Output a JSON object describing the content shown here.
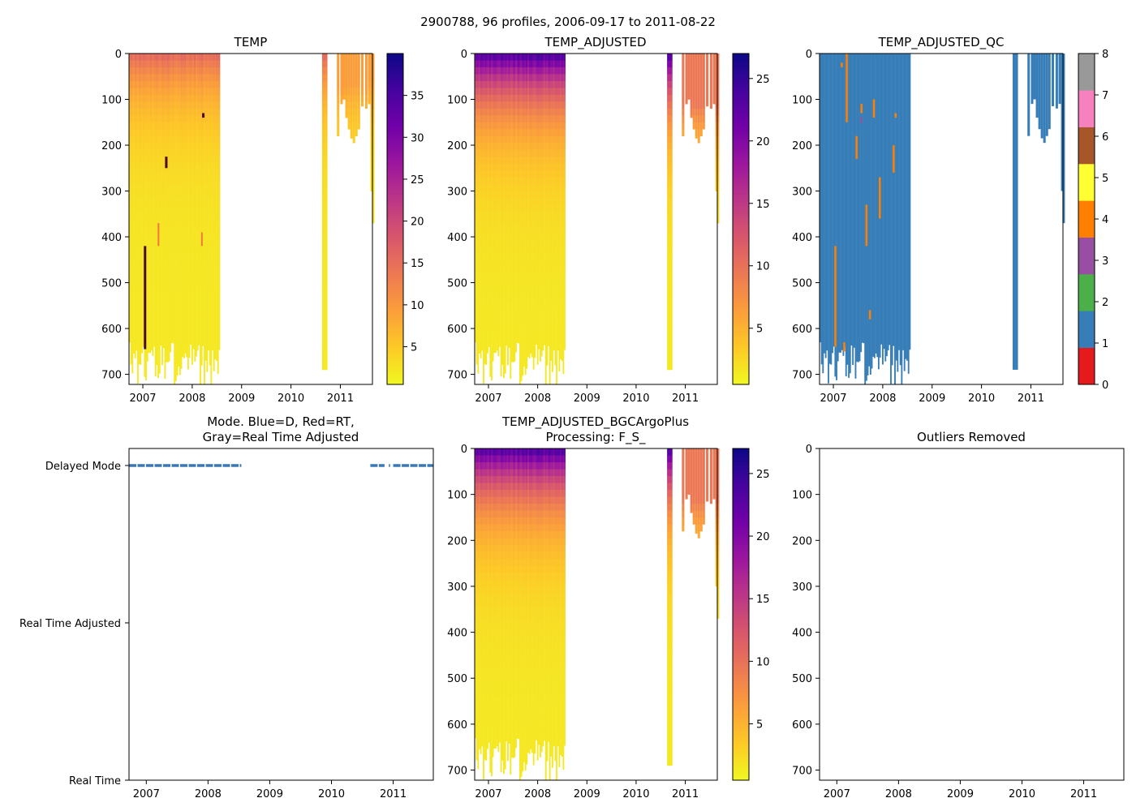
{
  "suptitle": "2900788, 96 profiles, 2006-09-17 to 2011-08-22",
  "colors": {
    "plasma": [
      "#f0f921",
      "#fdca26",
      "#fb9f3a",
      "#ed7953",
      "#d8576b",
      "#bd3786",
      "#9c179e",
      "#7201a8",
      "#46039f",
      "#0d0887"
    ],
    "qc": [
      "#e41a1c",
      "#377eb8",
      "#4daf4a",
      "#984ea3",
      "#ff7f00",
      "#ffff33",
      "#a65628",
      "#f781bf",
      "#999999"
    ],
    "mode_delayed": "#3a78b5"
  },
  "chart_data": [
    {
      "id": "temp",
      "type": "heatmap",
      "title": "TEMP",
      "xticks": [
        "2007",
        "2008",
        "2009",
        "2010",
        "2011"
      ],
      "xlim": [
        2006.72,
        2011.65
      ],
      "yticks": [
        "0",
        "100",
        "200",
        "300",
        "400",
        "500",
        "600",
        "700"
      ],
      "ylim": [
        0,
        722
      ],
      "colorbar": {
        "ticks": [
          "5",
          "10",
          "15",
          "20",
          "25",
          "30",
          "35"
        ],
        "tick_values": [
          5,
          10,
          15,
          20,
          25,
          30,
          35
        ],
        "range": [
          0.5,
          40
        ]
      },
      "surface_value": 16,
      "deep_value": 2,
      "variant": "raw"
    },
    {
      "id": "temp-adjusted",
      "type": "heatmap",
      "title": "TEMP_ADJUSTED",
      "xticks": [
        "2007",
        "2008",
        "2009",
        "2010",
        "2011"
      ],
      "xlim": [
        2006.72,
        2011.65
      ],
      "yticks": [
        "0",
        "100",
        "200",
        "300",
        "400",
        "500",
        "600",
        "700"
      ],
      "ylim": [
        0,
        722
      ],
      "colorbar": {
        "ticks": [
          "5",
          "10",
          "15",
          "20",
          "25"
        ],
        "tick_values": [
          5,
          10,
          15,
          20,
          25
        ],
        "range": [
          0.5,
          27
        ]
      },
      "surface_value": 24,
      "deep_value": 1.5,
      "variant": "adjusted"
    },
    {
      "id": "temp-adjusted-qc",
      "type": "heatmap",
      "title": "TEMP_ADJUSTED_QC",
      "xticks": [
        "2007",
        "2008",
        "2009",
        "2010",
        "2011"
      ],
      "xlim": [
        2006.72,
        2011.65
      ],
      "yticks": [
        "0",
        "100",
        "200",
        "300",
        "400",
        "500",
        "600",
        "700"
      ],
      "ylim": [
        0,
        722
      ],
      "colorbar": {
        "ticks": [
          "0",
          "1",
          "2",
          "3",
          "4",
          "5",
          "6",
          "7",
          "8"
        ],
        "tick_values": [
          0,
          1,
          2,
          3,
          4,
          5,
          6,
          7,
          8
        ],
        "range": [
          0,
          8
        ],
        "categorical": true
      },
      "variant": "qc"
    },
    {
      "id": "mode",
      "type": "scatter",
      "title": "Mode. Blue=D, Red=RT,",
      "title2": "Gray=Real Time Adjusted",
      "xticks": [
        "2007",
        "2008",
        "2009",
        "2010",
        "2011"
      ],
      "xlim": [
        2006.72,
        2011.65
      ],
      "yticks": [
        "Delayed Mode",
        "Real Time Adjusted",
        "Real Time"
      ],
      "series": [
        {
          "name": "D",
          "y": "Delayed Mode",
          "x_segments": [
            [
              2006.72,
              2008.54
            ],
            [
              2010.63,
              2010.86
            ],
            [
              2010.93,
              2010.95
            ],
            [
              2011.0,
              2011.65
            ]
          ]
        }
      ]
    },
    {
      "id": "temp-bgc",
      "type": "heatmap",
      "title": "TEMP_ADJUSTED_BGCArgoPlus",
      "title2": "Processing: F_S_",
      "xticks": [
        "2007",
        "2008",
        "2009",
        "2010",
        "2011"
      ],
      "xlim": [
        2006.72,
        2011.65
      ],
      "yticks": [
        "0",
        "100",
        "200",
        "300",
        "400",
        "500",
        "600",
        "700"
      ],
      "ylim": [
        0,
        722
      ],
      "colorbar": {
        "ticks": [
          "5",
          "10",
          "15",
          "20",
          "25"
        ],
        "tick_values": [
          5,
          10,
          15,
          20,
          25
        ],
        "range": [
          0.5,
          27
        ]
      },
      "surface_value": 24,
      "deep_value": 1.5,
      "variant": "adjusted"
    },
    {
      "id": "outliers",
      "type": "scatter",
      "title": "Outliers Removed",
      "xticks": [
        "2007",
        "2008",
        "2009",
        "2010",
        "2011"
      ],
      "xlim": [
        2006.72,
        2011.65
      ],
      "yticks": [
        "0",
        "100",
        "200",
        "300",
        "400",
        "500",
        "600",
        "700"
      ],
      "ylim": [
        0,
        722
      ],
      "series": []
    }
  ]
}
